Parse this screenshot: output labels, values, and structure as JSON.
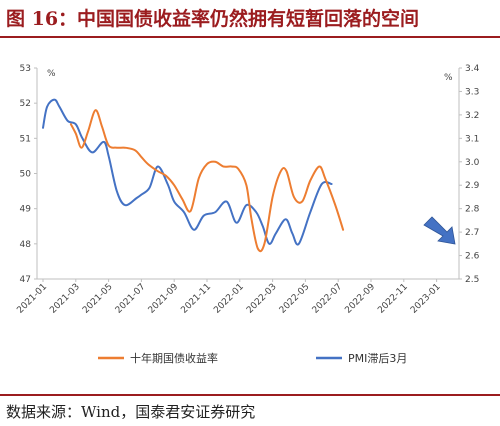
{
  "figure_title": "图 16：中国国债收益率仍然拥有短暂回落的空间",
  "source_note": "数据来源：Wind，国泰君安证券研究",
  "chart_data": {
    "type": "line",
    "x_categories": [
      "2021-01",
      "2021-02",
      "2021-03",
      "2021-04",
      "2021-05",
      "2021-06",
      "2021-07",
      "2021-08",
      "2021-09",
      "2021-10",
      "2021-11",
      "2021-12",
      "2022-01",
      "2022-02",
      "2022-03",
      "2022-04",
      "2022-05",
      "2022-06",
      "2022-07",
      "2022-08",
      "2022-09",
      "2022-10",
      "2022-11",
      "2022-12",
      "2023-01",
      "2023-02"
    ],
    "x_tick_labels": [
      "2021-01",
      "2021-03",
      "2021-05",
      "2021-07",
      "2021-09",
      "2021-11",
      "2022-01",
      "2022-03",
      "2022-05",
      "2022-07",
      "2022-09",
      "2022-11",
      "2023-01"
    ],
    "left_axis": {
      "unit": "%",
      "ylim": [
        47,
        53
      ],
      "ticks": [
        "53",
        "52",
        "51",
        "50",
        "49",
        "48",
        "47"
      ]
    },
    "right_axis": {
      "unit": "%",
      "ylim": [
        2.5,
        3.4
      ],
      "ticks": [
        "3.4",
        "3.3",
        "3.2",
        "3.1",
        "3.0",
        "2.9",
        "2.8",
        "2.7",
        "2.6",
        "2.5"
      ]
    },
    "series": [
      {
        "name": "PMI滞后3月",
        "axis": "left",
        "color": "#4472c4",
        "points": [
          [
            0,
            51.3
          ],
          [
            0.25,
            51.9
          ],
          [
            0.7,
            52.1
          ],
          [
            1,
            51.9
          ],
          [
            1.5,
            51.5
          ],
          [
            2,
            51.4
          ],
          [
            2.4,
            51.0
          ],
          [
            3,
            50.6
          ],
          [
            3.7,
            50.9
          ],
          [
            4,
            50.5
          ],
          [
            4.5,
            49.5
          ],
          [
            5,
            49.1
          ],
          [
            5.7,
            49.3
          ],
          [
            6,
            49.4
          ],
          [
            6.5,
            49.6
          ],
          [
            7,
            50.2
          ],
          [
            7.6,
            49.7
          ],
          [
            8,
            49.2
          ],
          [
            8.6,
            48.9
          ],
          [
            9.2,
            48.4
          ],
          [
            9.8,
            48.8
          ],
          [
            10.5,
            48.9
          ],
          [
            11.2,
            49.2
          ],
          [
            11.8,
            48.6
          ],
          [
            12.4,
            49.1
          ],
          [
            13,
            48.9
          ],
          [
            13.4,
            48.5
          ],
          [
            13.8,
            48.0
          ],
          [
            14.2,
            48.3
          ],
          [
            14.8,
            48.7
          ],
          [
            15.2,
            48.3
          ],
          [
            15.6,
            48.0
          ],
          [
            16.3,
            48.9
          ],
          [
            17,
            49.7
          ],
          [
            17.6,
            49.7
          ]
        ]
      },
      {
        "name": "十年期国债收益率",
        "axis": "right",
        "color": "#ed7d31",
        "points": [
          [
            1.7,
            3.16
          ],
          [
            2,
            3.12
          ],
          [
            2.35,
            3.06
          ],
          [
            2.75,
            3.13
          ],
          [
            3.2,
            3.22
          ],
          [
            3.6,
            3.15
          ],
          [
            4,
            3.07
          ],
          [
            4.5,
            3.06
          ],
          [
            5,
            3.06
          ],
          [
            5.6,
            3.05
          ],
          [
            6,
            3.02
          ],
          [
            6.4,
            2.99
          ],
          [
            7,
            2.96
          ],
          [
            7.5,
            2.94
          ],
          [
            8,
            2.9
          ],
          [
            8.5,
            2.84
          ],
          [
            9,
            2.79
          ],
          [
            9.5,
            2.93
          ],
          [
            10,
            2.99
          ],
          [
            10.5,
            3.0
          ],
          [
            11,
            2.98
          ],
          [
            11.5,
            2.98
          ],
          [
            11.9,
            2.97
          ],
          [
            12.4,
            2.9
          ],
          [
            12.7,
            2.76
          ],
          [
            13.1,
            2.63
          ],
          [
            13.5,
            2.65
          ],
          [
            14,
            2.85
          ],
          [
            14.5,
            2.96
          ],
          [
            14.85,
            2.96
          ],
          [
            15.3,
            2.85
          ],
          [
            15.8,
            2.83
          ],
          [
            16.3,
            2.92
          ],
          [
            16.85,
            2.98
          ],
          [
            17.2,
            2.93
          ],
          [
            17.8,
            2.82
          ],
          [
            18.3,
            2.71
          ]
        ]
      }
    ],
    "annotation": {
      "shape": "arrow",
      "color": "#4472c4",
      "direction": "down-right"
    },
    "legend": {
      "placement": "bottom",
      "items": [
        "十年期国债收益率",
        "PMI滞后3月"
      ]
    },
    "grid": false
  }
}
